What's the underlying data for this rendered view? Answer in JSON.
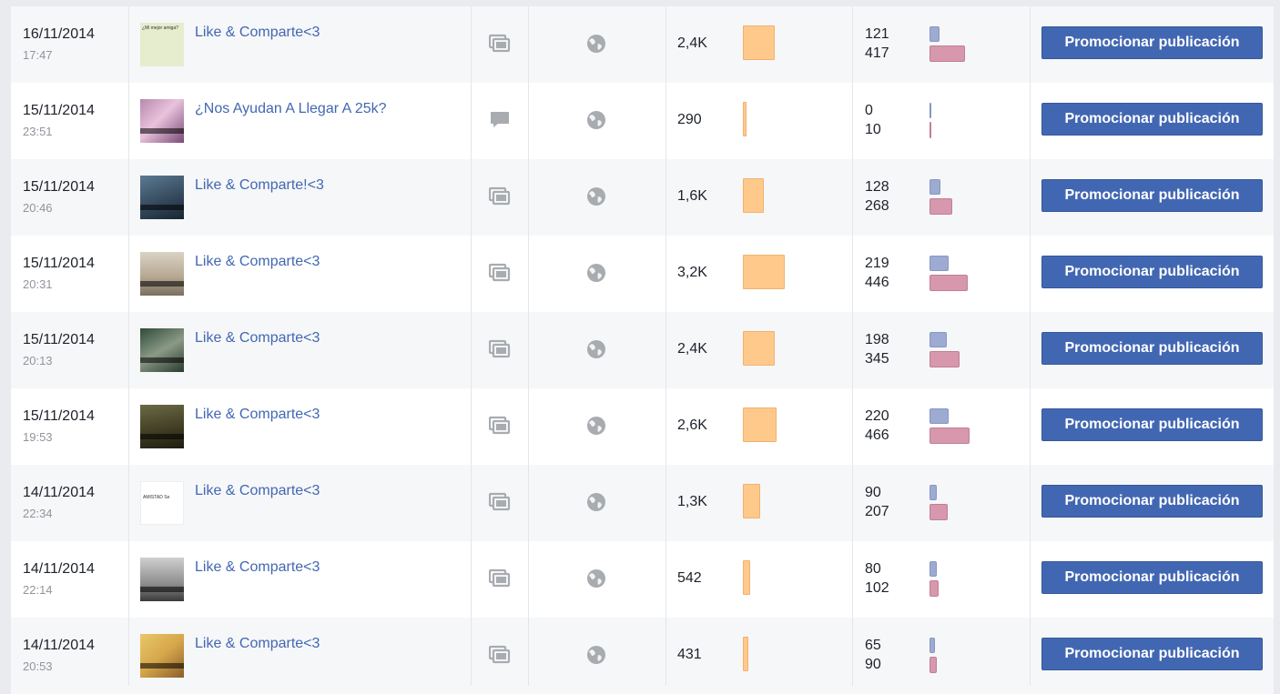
{
  "posts": [
    {
      "date": "16/11/2014",
      "time": "17:47",
      "title": "Like & Comparte<3",
      "type": "album",
      "type_icon": "album-icon",
      "privacy_icon": "globe-icon",
      "reach": "2,4K",
      "reach_value": 2400,
      "engagement_top": "121",
      "engagement_bottom": "417",
      "promote_label": "Promocionar publicación",
      "thumb_caption": "¿Mi mejor amiga?"
    },
    {
      "date": "15/11/2014",
      "time": "23:51",
      "title": "¿Nos Ayudan A Llegar A 25k?",
      "type": "status",
      "type_icon": "comment-icon",
      "privacy_icon": "globe-icon",
      "reach": "290",
      "reach_value": 290,
      "engagement_top": "0",
      "engagement_bottom": "10",
      "promote_label": "Promocionar publicación"
    },
    {
      "date": "15/11/2014",
      "time": "20:46",
      "title": "Like & Comparte!<3",
      "type": "album",
      "type_icon": "album-icon",
      "privacy_icon": "globe-icon",
      "reach": "1,6K",
      "reach_value": 1600,
      "engagement_top": "128",
      "engagement_bottom": "268",
      "promote_label": "Promocionar publicación"
    },
    {
      "date": "15/11/2014",
      "time": "20:31",
      "title": "Like & Comparte<3",
      "type": "album",
      "type_icon": "album-icon",
      "privacy_icon": "globe-icon",
      "reach": "3,2K",
      "reach_value": 3200,
      "engagement_top": "219",
      "engagement_bottom": "446",
      "promote_label": "Promocionar publicación"
    },
    {
      "date": "15/11/2014",
      "time": "20:13",
      "title": "Like & Comparte<3",
      "type": "album",
      "type_icon": "album-icon",
      "privacy_icon": "globe-icon",
      "reach": "2,4K",
      "reach_value": 2400,
      "engagement_top": "198",
      "engagement_bottom": "345",
      "promote_label": "Promocionar publicación"
    },
    {
      "date": "15/11/2014",
      "time": "19:53",
      "title": "Like & Comparte<3",
      "type": "album",
      "type_icon": "album-icon",
      "privacy_icon": "globe-icon",
      "reach": "2,6K",
      "reach_value": 2600,
      "engagement_top": "220",
      "engagement_bottom": "466",
      "promote_label": "Promocionar publicación"
    },
    {
      "date": "14/11/2014",
      "time": "22:34",
      "title": "Like & Comparte<3",
      "type": "album",
      "type_icon": "album-icon",
      "privacy_icon": "globe-icon",
      "reach": "1,3K",
      "reach_value": 1300,
      "engagement_top": "90",
      "engagement_bottom": "207",
      "promote_label": "Promocionar publicación",
      "thumb_caption": "AMISTAD Se"
    },
    {
      "date": "14/11/2014",
      "time": "22:14",
      "title": "Like & Comparte<3",
      "type": "album",
      "type_icon": "album-icon",
      "privacy_icon": "globe-icon",
      "reach": "542",
      "reach_value": 542,
      "engagement_top": "80",
      "engagement_bottom": "102",
      "promote_label": "Promocionar publicación"
    },
    {
      "date": "14/11/2014",
      "time": "20:53",
      "title": "Like & Comparte<3",
      "type": "album",
      "type_icon": "album-icon",
      "privacy_icon": "globe-icon",
      "reach": "431",
      "reach_value": 431,
      "engagement_top": "65",
      "engagement_bottom": "90",
      "promote_label": "Promocionar publicación"
    }
  ],
  "colors": {
    "link": "#4267b2",
    "button_bg": "#4267b2",
    "reach_bar": "#ffc98b",
    "engagement_top_bar": "#9daad1",
    "engagement_bottom_bar": "#d797ad",
    "row_alt": "#f6f7f9",
    "icon_gray": "#a8abaf"
  }
}
